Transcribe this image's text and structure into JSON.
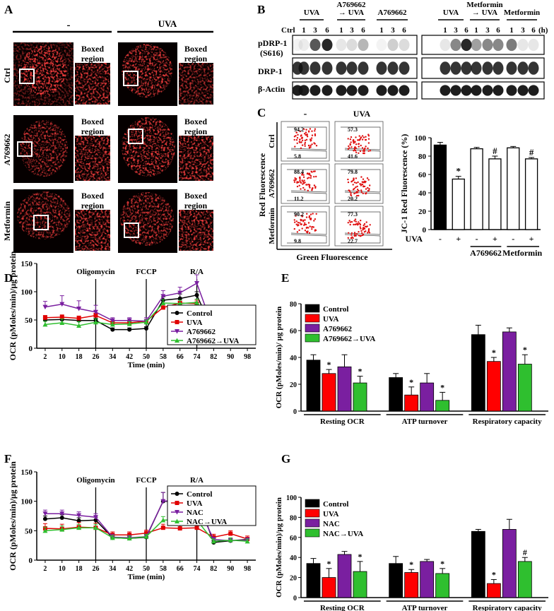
{
  "panel_letters": {
    "A": "A",
    "B": "B",
    "C": "C",
    "D": "D",
    "E": "E",
    "F": "F",
    "G": "G"
  },
  "panelA": {
    "col_headers": [
      "-",
      "UVA"
    ],
    "row_labels": [
      "Ctrl",
      "A769662",
      "Metformin"
    ],
    "boxed_label_line1": "Boxed",
    "boxed_label_line2": "region"
  },
  "panelB": {
    "left_groups": [
      {
        "lines": [
          "UVA"
        ]
      },
      {
        "lines": [
          "A769662",
          "→ UVA"
        ]
      },
      {
        "lines": [
          "A769662"
        ]
      }
    ],
    "right_groups": [
      {
        "lines": [
          "UVA"
        ]
      },
      {
        "lines": [
          "Metformin",
          "→ UVA"
        ]
      },
      {
        "lines": [
          "Metformin"
        ]
      }
    ],
    "lane_ctrl": "Ctrl",
    "lane_times": [
      "1",
      "3",
      "6"
    ],
    "unit": "(h)",
    "blot_labels": [
      "pDRP-1",
      "(S616)",
      "DRP-1",
      "β-Actin"
    ]
  },
  "panelC": {
    "flow_col_headers": [
      "-",
      "UVA"
    ],
    "flow_row_labels": [
      "Ctrl",
      "A769662",
      "Metformin"
    ],
    "flow_values": [
      [
        "94.2",
        "5.8",
        "57.3",
        "41.6"
      ],
      [
        "88.4",
        "11.2",
        "79.8",
        "20.2"
      ],
      [
        "90.2",
        "9.8",
        "77.3",
        "22.7"
      ]
    ],
    "y_label": "Red Fluorescence",
    "x_label": "Green Fluorescence",
    "uva_row_label": "UVA",
    "uva_signs": [
      "-",
      "+",
      "-",
      "+",
      "-",
      "+"
    ],
    "group_labels": [
      "A769662",
      "Metformin"
    ]
  },
  "chart_data": [
    {
      "id": "C_bar",
      "type": "bar",
      "ylabel": "JC-1 Red Fluorescence (%)",
      "ylim": [
        0,
        100
      ],
      "yticks": [
        "0",
        "20",
        "40",
        "60",
        "80",
        "100"
      ],
      "categories": [
        "-",
        "+",
        "-",
        "+",
        "-",
        "+"
      ],
      "values": [
        92,
        55,
        88,
        77,
        89,
        77
      ],
      "errors": [
        3,
        3,
        1.5,
        3,
        1.5,
        1.5
      ],
      "fills": [
        "#000000",
        "#ffffff",
        "#ffffff",
        "#ffffff",
        "#ffffff",
        "#ffffff"
      ],
      "marks": [
        "",
        "*",
        "",
        "#",
        "",
        "#"
      ]
    },
    {
      "id": "D_line",
      "type": "line",
      "ylabel": "OCR (pMoles/min)/µg protein",
      "xlabel": "Time (min)",
      "ylim": [
        0,
        150
      ],
      "yticks": [
        "0",
        "50",
        "100",
        "150"
      ],
      "x": [
        2,
        10,
        18,
        26,
        34,
        42,
        50,
        58,
        66,
        74,
        82,
        90,
        98
      ],
      "xticks": [
        "2",
        "10",
        "18",
        "26",
        "34",
        "42",
        "50",
        "58",
        "66",
        "74",
        "82",
        "90",
        "98"
      ],
      "injections": [
        {
          "x": 26,
          "label": "Oligomycin"
        },
        {
          "x": 50,
          "label": "FCCP"
        },
        {
          "x": 74,
          "label": "R/A"
        }
      ],
      "series": [
        {
          "name": "Control",
          "color": "#000000",
          "marker": "circle",
          "values": [
            50,
            51,
            49,
            49,
            33,
            33,
            35,
            85,
            88,
            94,
            28,
            33,
            34
          ],
          "errors": [
            4,
            4,
            4,
            4,
            3,
            3,
            3,
            6,
            8,
            6,
            3,
            3,
            3
          ]
        },
        {
          "name": "UVA",
          "color": "#e00000",
          "marker": "square",
          "values": [
            54,
            55,
            53,
            58,
            45,
            45,
            48,
            72,
            80,
            79,
            30,
            34,
            34
          ],
          "errors": [
            4,
            4,
            4,
            4,
            3,
            3,
            3,
            5,
            5,
            6,
            3,
            3,
            3
          ]
        },
        {
          "name": "A769662",
          "color": "#7a1fa0",
          "marker": "triangle-down",
          "values": [
            73,
            78,
            70,
            64,
            49,
            49,
            48,
            92,
            98,
            115,
            33,
            33,
            34
          ],
          "errors": [
            10,
            15,
            14,
            12,
            5,
            5,
            6,
            10,
            10,
            15,
            4,
            4,
            4
          ]
        },
        {
          "name": "A769662→UVA",
          "color": "#2fbf2f",
          "marker": "triangle-up",
          "values": [
            42,
            45,
            40,
            46,
            42,
            43,
            46,
            80,
            79,
            81,
            28,
            47,
            45
          ],
          "errors": [
            6,
            7,
            7,
            6,
            4,
            4,
            4,
            6,
            6,
            6,
            4,
            10,
            10
          ]
        }
      ]
    },
    {
      "id": "E_bar",
      "type": "bar",
      "ylabel": "OCR (pMoles/min)/ µg protein",
      "ylim": [
        0,
        80
      ],
      "yticks": [
        "0",
        "20",
        "40",
        "60",
        "80"
      ],
      "categories": [
        "Resting OCR",
        "ATP turnover",
        "Respiratory capacity"
      ],
      "series": [
        {
          "name": "Control",
          "color": "#000000",
          "values": [
            38,
            25,
            57
          ],
          "errors": [
            4,
            3,
            7
          ]
        },
        {
          "name": "UVA",
          "color": "#ff0000",
          "values": [
            28,
            12,
            37
          ],
          "errors": [
            3,
            6,
            3
          ]
        },
        {
          "name": "A769662",
          "color": "#7a1fa0",
          "values": [
            33,
            21,
            59
          ],
          "errors": [
            9,
            7,
            3
          ]
        },
        {
          "name": "A769662→UVA",
          "color": "#2fbf2f",
          "values": [
            21,
            8,
            35
          ],
          "errors": [
            5,
            6,
            7
          ]
        }
      ],
      "marks": [
        [
          "",
          "*",
          "",
          "*"
        ],
        [
          "",
          "*",
          "",
          "*"
        ],
        [
          "",
          "*",
          "",
          "*"
        ]
      ]
    },
    {
      "id": "F_line",
      "type": "line",
      "ylabel": "OCR (pMoles/min)/µg protein",
      "xlabel": "Time (min)",
      "ylim": [
        0,
        150
      ],
      "yticks": [
        "0",
        "50",
        "100",
        "150"
      ],
      "x": [
        2,
        10,
        18,
        26,
        34,
        42,
        50,
        58,
        66,
        74,
        82,
        90,
        98
      ],
      "xticks": [
        "2",
        "10",
        "18",
        "26",
        "34",
        "42",
        "50",
        "58",
        "66",
        "74",
        "82",
        "90",
        "98"
      ],
      "injections": [
        {
          "x": 26,
          "label": "Oligomycin"
        },
        {
          "x": 50,
          "label": "FCCP"
        },
        {
          "x": 74,
          "label": "R/A"
        }
      ],
      "series": [
        {
          "name": "Control",
          "color": "#000000",
          "marker": "circle",
          "values": [
            70,
            72,
            67,
            68,
            38,
            37,
            39,
            100,
            100,
            108,
            30,
            33,
            35
          ],
          "errors": [
            5,
            5,
            5,
            5,
            5,
            4,
            4,
            15,
            15,
            18,
            3,
            3,
            3
          ]
        },
        {
          "name": "UVA",
          "color": "#e00000",
          "marker": "square",
          "values": [
            54,
            53,
            56,
            55,
            43,
            43,
            46,
            55,
            54,
            55,
            39,
            45,
            36
          ],
          "errors": [
            8,
            8,
            8,
            8,
            5,
            5,
            5,
            6,
            6,
            6,
            5,
            5,
            5
          ]
        },
        {
          "name": "NAC",
          "color": "#7a1fa0",
          "marker": "triangle-down",
          "values": [
            79,
            79,
            76,
            73,
            39,
            38,
            40,
            100,
            103,
            96,
            35,
            33,
            34
          ],
          "errors": [
            6,
            6,
            6,
            6,
            5,
            4,
            4,
            15,
            15,
            18,
            4,
            4,
            4
          ]
        },
        {
          "name": "NAC→UVA",
          "color": "#2fbf2f",
          "marker": "triangle-up",
          "values": [
            50,
            52,
            55,
            55,
            38,
            37,
            40,
            68,
            68,
            68,
            32,
            34,
            32
          ],
          "errors": [
            6,
            6,
            6,
            6,
            4,
            4,
            4,
            6,
            6,
            6,
            4,
            4,
            4
          ]
        }
      ]
    },
    {
      "id": "G_bar",
      "type": "bar",
      "ylabel": "OCR (pMoles/min)/µg protein",
      "ylim": [
        0,
        100
      ],
      "yticks": [
        "0",
        "20",
        "40",
        "60",
        "80",
        "100"
      ],
      "categories": [
        "Resting OCR",
        "ATP turnover",
        "Respiratory capacity"
      ],
      "series": [
        {
          "name": "Control",
          "color": "#000000",
          "values": [
            34,
            34,
            66
          ],
          "errors": [
            5,
            7,
            2
          ]
        },
        {
          "name": "UVA",
          "color": "#ff0000",
          "values": [
            20,
            25,
            14
          ],
          "errors": [
            9,
            3,
            4
          ]
        },
        {
          "name": "NAC",
          "color": "#7a1fa0",
          "values": [
            43,
            36,
            68
          ],
          "errors": [
            3,
            2,
            10
          ]
        },
        {
          "name": "NAC→UVA",
          "color": "#2fbf2f",
          "values": [
            26,
            24,
            36
          ],
          "errors": [
            10,
            5,
            4
          ]
        }
      ],
      "marks": [
        [
          "",
          "*",
          "",
          "*"
        ],
        [
          "",
          "*",
          "",
          "*"
        ],
        [
          "",
          "*",
          "",
          "#"
        ]
      ]
    }
  ]
}
